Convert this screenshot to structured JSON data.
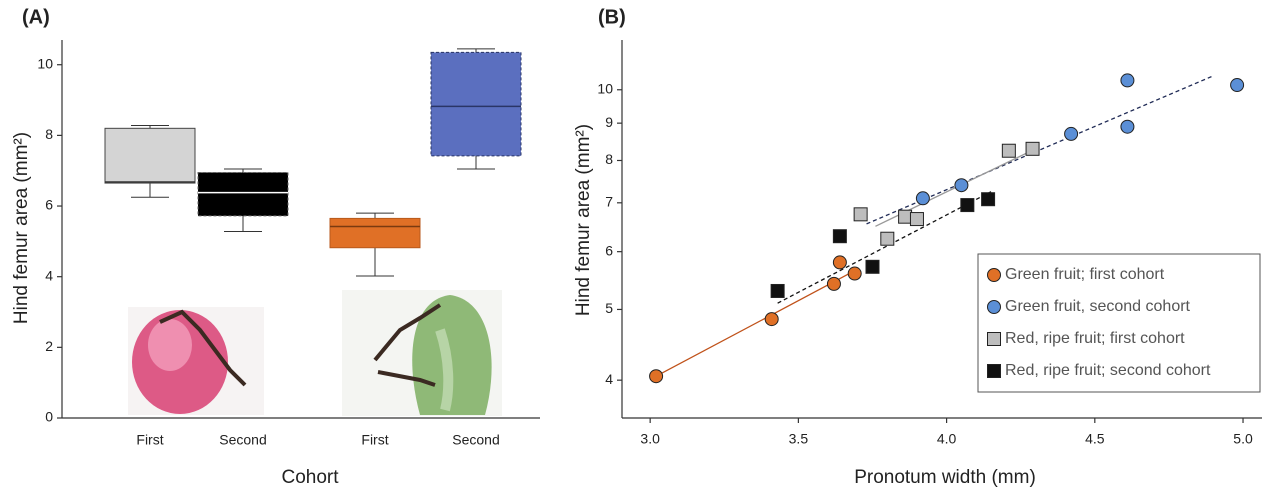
{
  "chart_data": [
    {
      "type": "box",
      "panel_label": "(A)",
      "ylabel": "Hind femur area (mm²)",
      "xlabel": "Cohort",
      "categories": [
        "First",
        "Second",
        "First",
        "Second"
      ],
      "boxes": [
        {
          "color": "#d4d4d4",
          "median_color": "#333333",
          "border": "#444444",
          "low": 6.25,
          "q1": 6.65,
          "median": 6.68,
          "q3": 8.2,
          "high": 8.28
        },
        {
          "color": "#000000",
          "median_color": "#ffffff",
          "border": "#666666",
          "low": 5.28,
          "q1": 5.72,
          "median": 6.38,
          "q3": 6.95,
          "high": 7.05
        },
        {
          "color": "#e07026",
          "median_color": "#7a3a10",
          "border": "#b85a1c",
          "low": 4.02,
          "q1": 4.82,
          "median": 5.42,
          "q3": 5.65,
          "high": 5.8
        },
        {
          "color": "#5b6fbf",
          "median_color": "#2a3566",
          "border": "#2a3566",
          "low": 7.05,
          "q1": 7.42,
          "median": 8.82,
          "q3": 10.35,
          "high": 10.45
        }
      ],
      "ylim": [
        0,
        10.7
      ],
      "yticks": [
        0,
        2,
        4,
        6,
        8,
        10
      ]
    },
    {
      "type": "scatter",
      "panel_label": "(B)",
      "ylabel": "Hind femur area (mm²)",
      "xlabel": "Pronotum width (mm)",
      "log_y": true,
      "legend": "lower right",
      "xlim": [
        2.905,
        5.064
      ],
      "xticks": [
        {
          "value": 3,
          "label": "3.0"
        },
        3.5,
        {
          "value": 4,
          "label": "4.0"
        },
        4.5,
        {
          "value": 5,
          "label": "5.0"
        }
      ],
      "ylim": [
        3.55,
        11.7
      ],
      "yticks": [
        4,
        5,
        6,
        7,
        8,
        9,
        10
      ],
      "series": [
        {
          "name": "Green fruit; first cohort",
          "color": "#e07026",
          "marker": "circle",
          "x": [
            3.02,
            3.41,
            3.62,
            3.64,
            3.69
          ],
          "values": [
            4.05,
            4.85,
            5.42,
            5.8,
            5.6
          ]
        },
        {
          "name": "Green fruit, second cohort",
          "color": "#5b8fd6",
          "marker": "circle",
          "x": [
            3.92,
            4.05,
            4.42,
            4.61,
            4.61,
            4.98
          ],
          "values": [
            7.1,
            7.4,
            8.7,
            8.9,
            10.3,
            10.15
          ]
        },
        {
          "name": "Red, ripe fruit; first cohort",
          "color": "#bdbdbd",
          "marker": "square",
          "x": [
            3.71,
            3.8,
            3.86,
            3.9,
            4.21,
            4.29
          ],
          "values": [
            6.75,
            6.25,
            6.7,
            6.65,
            8.25,
            8.3
          ]
        },
        {
          "name": "Red, ripe fruit; second cohort",
          "color": "#111111",
          "marker": "square",
          "x": [
            3.43,
            3.64,
            3.75,
            4.07,
            4.14
          ],
          "values": [
            5.3,
            6.3,
            5.72,
            6.95,
            7.08
          ]
        }
      ],
      "fit_lines": [
        {
          "color": "#c0521a",
          "dashed": false,
          "x": [
            3.02,
            3.69
          ],
          "values": [
            4.05,
            5.65
          ]
        },
        {
          "color": "#1f2a55",
          "dashed": true,
          "x": [
            3.73,
            4.9
          ],
          "values": [
            6.55,
            10.45
          ]
        },
        {
          "color": "#999999",
          "dashed": false,
          "x": [
            3.76,
            4.3
          ],
          "values": [
            6.5,
            8.3
          ]
        },
        {
          "color": "#111111",
          "dashed": true,
          "x": [
            3.43,
            4.15
          ],
          "values": [
            5.1,
            7.25
          ]
        }
      ]
    }
  ]
}
